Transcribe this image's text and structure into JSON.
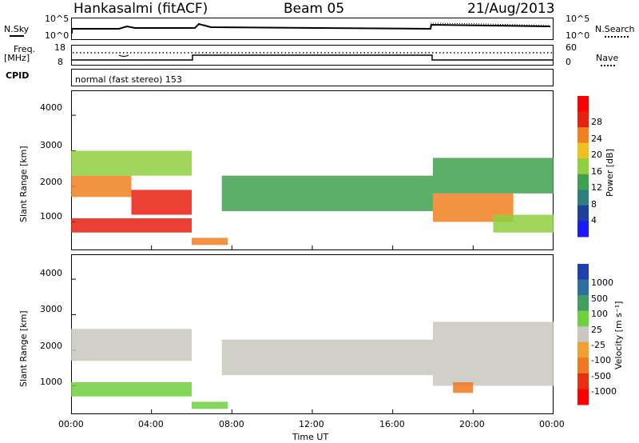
{
  "header": {
    "station": "Hankasalmi (fitACF)",
    "beam": "Beam 05",
    "date": "21/Aug/2013"
  },
  "strip_labels": {
    "nsky": "N.Sky",
    "nsearch": "N.Search",
    "freq": "Freq.",
    "freq_unit": "[MHz]",
    "nave": "Nave",
    "cpid": "CPID",
    "cpid_text": "normal (fast stereo) 153"
  },
  "strip_ticks": {
    "noise_left": [
      "10^5",
      "10^0"
    ],
    "noise_right": [
      "10^5",
      "10^0"
    ],
    "freq_left": [
      "18",
      "8"
    ],
    "freq_right": [
      "60",
      "0"
    ]
  },
  "colors": {
    "line": "#000000",
    "background": "#ffffff"
  },
  "chart_data": [
    {
      "type": "heatmap",
      "title": "Power",
      "xlabel": "Time UT",
      "ylabel": "Slant Range [km]",
      "xlim": [
        0,
        24
      ],
      "ylim": [
        200,
        4700
      ],
      "x_ticks": [
        "00:00",
        "04:00",
        "08:00",
        "12:00",
        "16:00",
        "20:00",
        "00:00"
      ],
      "y_ticks": [
        "1000",
        "2000",
        "3000",
        "4000"
      ],
      "colorbar": {
        "label": "Power [dB]",
        "ticks": [
          "4",
          "8",
          "12",
          "16",
          "20",
          "24",
          "28"
        ],
        "colors": [
          "#1a1aff",
          "#1f3fa0",
          "#2f7f7f",
          "#3fa04f",
          "#8fcf3f",
          "#f0c020",
          "#f08020",
          "#e82010",
          "#ff0000"
        ]
      },
      "bands": [
        {
          "x": [
            0,
            6
          ],
          "y": [
            700,
            1100
          ],
          "value": 28
        },
        {
          "x": [
            0,
            3
          ],
          "y": [
            1700,
            2300
          ],
          "value": 24
        },
        {
          "x": [
            3,
            6
          ],
          "y": [
            1200,
            1900
          ],
          "value": 26
        },
        {
          "x": [
            0,
            6
          ],
          "y": [
            2300,
            3000
          ],
          "value": 14
        },
        {
          "x": [
            6,
            7.8
          ],
          "y": [
            350,
            550
          ],
          "value": 24
        },
        {
          "x": [
            7.5,
            18
          ],
          "y": [
            1300,
            2300
          ],
          "value": 10
        },
        {
          "x": [
            18,
            22
          ],
          "y": [
            1000,
            1800
          ],
          "value": 24
        },
        {
          "x": [
            18,
            24
          ],
          "y": [
            1800,
            2800
          ],
          "value": 12
        },
        {
          "x": [
            21,
            24
          ],
          "y": [
            700,
            1200
          ],
          "value": 16
        }
      ]
    },
    {
      "type": "heatmap",
      "title": "Velocity",
      "xlabel": "Time UT",
      "ylabel": "Slant Range [km]",
      "xlim": [
        0,
        24
      ],
      "ylim": [
        200,
        4700
      ],
      "x_ticks": [
        "00:00",
        "04:00",
        "08:00",
        "12:00",
        "16:00",
        "20:00",
        "00:00"
      ],
      "y_ticks": [
        "1000",
        "2000",
        "3000",
        "4000"
      ],
      "colorbar": {
        "label": "Velocity [m s⁻¹]",
        "ticks": [
          "1000",
          "500",
          "100",
          "25",
          "-25",
          "-100",
          "-500",
          "-1000"
        ],
        "colors": [
          "#1f3fb0",
          "#2f6f9f",
          "#3f9f5f",
          "#6fcf3f",
          "#c8c8c0",
          "#f0a030",
          "#f07820",
          "#e83010",
          "#ff0000"
        ]
      },
      "bands": [
        {
          "x": [
            0,
            6
          ],
          "y": [
            700,
            1100
          ],
          "value": 50
        },
        {
          "x": [
            0,
            6
          ],
          "y": [
            1700,
            2600
          ],
          "value": 0
        },
        {
          "x": [
            6,
            7.8
          ],
          "y": [
            350,
            550
          ],
          "value": 50
        },
        {
          "x": [
            7.5,
            18
          ],
          "y": [
            1300,
            2300
          ],
          "value": 0
        },
        {
          "x": [
            18,
            24
          ],
          "y": [
            1000,
            2800
          ],
          "value": 0
        },
        {
          "x": [
            19,
            20
          ],
          "y": [
            800,
            1100
          ],
          "value": -300
        }
      ]
    }
  ]
}
